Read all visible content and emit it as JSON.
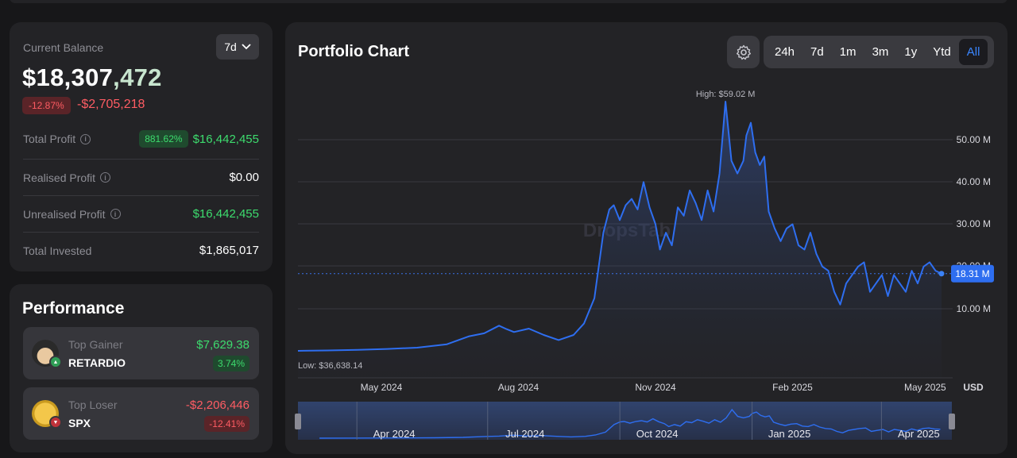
{
  "balance": {
    "label": "Current Balance",
    "period": "7d",
    "value_main": "$18,307",
    "value_tail": ",472",
    "change_pct": "-12.87%",
    "change_amount": "-$2,705,218",
    "stats": [
      {
        "label": "Total Profit",
        "badge": "881.62%",
        "value": "$16,442,455"
      },
      {
        "label": "Realised Profit",
        "value": "$0.00"
      },
      {
        "label": "Unrealised Profit",
        "value": "$16,442,455"
      },
      {
        "label": "Total Invested",
        "value": "$1,865,017"
      }
    ]
  },
  "performance": {
    "title": "Performance",
    "gainer": {
      "label": "Top Gainer",
      "name": "RETARDIO",
      "amount": "$7,629.38",
      "pct": "3.74%"
    },
    "loser": {
      "label": "Top Loser",
      "name": "SPX",
      "amount": "-$2,206,446",
      "pct": "-12.41%"
    }
  },
  "chart": {
    "title": "Portfolio Chart",
    "ranges": [
      "24h",
      "7d",
      "1m",
      "3m",
      "1y",
      "Ytd",
      "All"
    ],
    "active_range": "All",
    "watermark": "DropsTab",
    "currency": "USD"
  },
  "chart_data": {
    "type": "area",
    "title": "",
    "y_ticks": [
      "10.00 M",
      "20.00 M",
      "30.00 M",
      "40.00 M",
      "50.00 M"
    ],
    "x_ticks": [
      "May 2024",
      "Aug 2024",
      "Nov 2024",
      "Feb 2025",
      "May 2025"
    ],
    "high_label": "High: $59.02 M",
    "low_label": "Low: $36,638.14",
    "current_label": "18.31 M",
    "navigator_ticks": [
      "Apr 2024",
      "Jul 2024",
      "Oct 2024",
      "Jan 2025",
      "Apr 2025"
    ],
    "ylim": [
      0,
      59.02
    ],
    "series": [
      {
        "x": [
          "2024-03-06",
          "2024-03-26",
          "2024-04-15",
          "2024-05-05",
          "2024-05-25",
          "2024-06-14",
          "2024-06-29",
          "2024-07-09",
          "2024-07-19",
          "2024-07-24",
          "2024-07-29",
          "2024-08-08",
          "2024-08-18",
          "2024-08-28",
          "2024-09-07",
          "2024-09-14",
          "2024-09-21",
          "2024-09-27",
          "2024-10-01",
          "2024-10-04",
          "2024-10-08",
          "2024-10-12",
          "2024-10-16",
          "2024-10-20",
          "2024-10-24",
          "2024-10-28",
          "2024-11-01",
          "2024-11-04",
          "2024-11-08",
          "2024-11-12",
          "2024-11-16",
          "2024-11-20",
          "2024-11-24",
          "2024-11-28",
          "2024-12-02",
          "2024-12-06",
          "2024-12-10",
          "2024-12-14",
          "2024-12-18",
          "2024-12-22",
          "2024-12-26",
          "2024-12-30",
          "2025-01-01",
          "2025-01-04",
          "2025-01-07",
          "2025-01-10",
          "2025-01-13",
          "2025-01-16",
          "2025-01-20",
          "2025-01-24",
          "2025-01-28",
          "2025-02-01",
          "2025-02-05",
          "2025-02-09",
          "2025-02-13",
          "2025-02-17",
          "2025-02-21",
          "2025-02-25",
          "2025-03-01",
          "2025-03-05",
          "2025-03-09",
          "2025-03-13",
          "2025-03-17",
          "2025-03-21",
          "2025-03-25",
          "2025-03-29",
          "2025-04-02",
          "2025-04-06",
          "2025-04-10",
          "2025-04-14",
          "2025-04-18",
          "2025-04-22",
          "2025-04-26",
          "2025-04-30",
          "2025-05-04",
          "2025-05-08",
          "2025-05-12"
        ],
        "y": [
          0.04,
          0.15,
          0.3,
          0.5,
          0.8,
          1.6,
          3.5,
          4.2,
          6.0,
          5.2,
          4.5,
          5.3,
          3.8,
          2.6,
          3.8,
          6.5,
          12.5,
          28.0,
          33.5,
          34.5,
          31.0,
          34.5,
          36.0,
          33.5,
          40.0,
          34.0,
          30.0,
          24.0,
          28.0,
          25.0,
          34.0,
          32.0,
          38.0,
          35.0,
          31.0,
          38.0,
          33.0,
          42.0,
          59.02,
          45.0,
          42.0,
          45.0,
          51.0,
          54.0,
          47.0,
          44.0,
          46.0,
          33.0,
          29.0,
          26.0,
          29.0,
          30.0,
          25.0,
          24.0,
          28.0,
          23.0,
          20.0,
          19.0,
          14.0,
          11.0,
          16.0,
          18.0,
          20.0,
          21.0,
          14.0,
          16.0,
          18.0,
          13.0,
          18.0,
          16.0,
          14.0,
          19.0,
          16.0,
          20.0,
          21.0,
          19.0,
          18.31
        ]
      }
    ]
  }
}
